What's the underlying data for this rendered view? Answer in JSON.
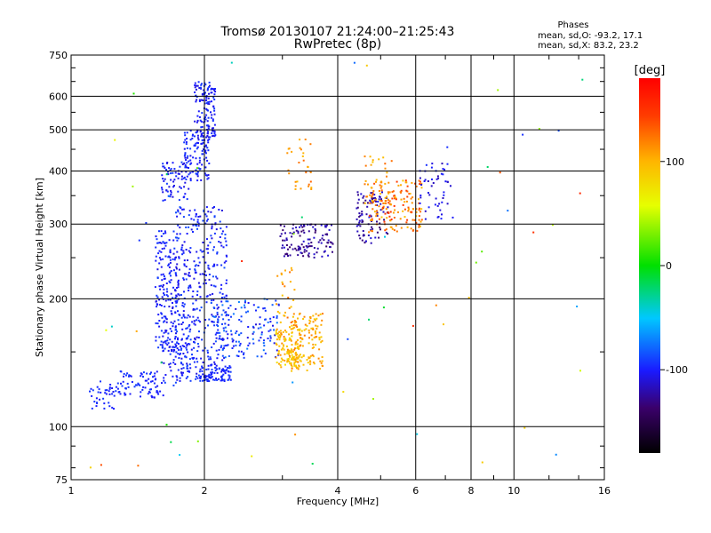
{
  "chart_data": {
    "type": "scatter",
    "title": "Tromsø 20130107 21:24:00–21:25:43",
    "subtitle": "RwPretec (8p)",
    "xlabel": "Frequency [MHz]",
    "ylabel": "Stationary phase Virtual Height [km]",
    "x_scale": "log",
    "y_scale": "log",
    "xlim": [
      1,
      16
    ],
    "ylim": [
      75,
      750
    ],
    "x_ticks": [
      {
        "value": 1,
        "label": "1"
      },
      {
        "value": 2,
        "label": "2"
      },
      {
        "value": 4,
        "label": "4"
      },
      {
        "value": 6,
        "label": "6"
      },
      {
        "value": 8,
        "label": "8"
      },
      {
        "value": 10,
        "label": "10"
      },
      {
        "value": 16,
        "label": "16"
      }
    ],
    "y_ticks": [
      {
        "value": 75,
        "label": "75"
      },
      {
        "value": 100,
        "label": "100"
      },
      {
        "value": 200,
        "label": "200"
      },
      {
        "value": 300,
        "label": "300"
      },
      {
        "value": 400,
        "label": "400"
      },
      {
        "value": 500,
        "label": "500"
      },
      {
        "value": 600,
        "label": "600"
      },
      {
        "value": 750,
        "label": "750"
      }
    ],
    "grid": true,
    "stats": {
      "title": "Phases",
      "line_o": "mean, sd,O: -93.2, 17.1",
      "line_x": "mean, sd,X:  83.2, 23.2"
    },
    "colorbar": {
      "label": "[deg]",
      "range": [
        -180,
        180
      ],
      "ticks": [
        {
          "value": 100,
          "label": "100"
        },
        {
          "value": 0,
          "label": "0"
        },
        {
          "value": -100,
          "label": "-100"
        }
      ]
    },
    "point_clusters": [
      {
        "x": [
          1.1,
          1.28
        ],
        "y": [
          110,
          128
        ],
        "phase": [
          -105,
          -90
        ],
        "count": 40
      },
      {
        "x": [
          1.28,
          1.62
        ],
        "y": [
          117,
          135
        ],
        "phase": [
          -105,
          -90
        ],
        "count": 80
      },
      {
        "x": [
          1.6,
          1.95
        ],
        "y": [
          125,
          185
        ],
        "phase": [
          -110,
          -88
        ],
        "count": 110
      },
      {
        "x": [
          1.55,
          1.75
        ],
        "y": [
          150,
          290
        ],
        "phase": [
          -110,
          -90
        ],
        "count": 180
      },
      {
        "x": [
          1.72,
          2.25
        ],
        "y": [
          130,
          330
        ],
        "phase": [
          -110,
          -85
        ],
        "count": 340
      },
      {
        "x": [
          1.95,
          2.3
        ],
        "y": [
          128,
          140
        ],
        "phase": [
          -105,
          -90
        ],
        "count": 90
      },
      {
        "x": [
          1.6,
          1.85
        ],
        "y": [
          340,
          420
        ],
        "phase": [
          -110,
          -90
        ],
        "count": 70
      },
      {
        "x": [
          1.8,
          2.05
        ],
        "y": [
          380,
          500
        ],
        "phase": [
          -110,
          -90
        ],
        "count": 110
      },
      {
        "x": [
          1.9,
          2.12
        ],
        "y": [
          480,
          650
        ],
        "phase": [
          -110,
          -90
        ],
        "count": 130
      },
      {
        "x": [
          2.1,
          2.95
        ],
        "y": [
          145,
          200
        ],
        "phase": [
          -110,
          -70
        ],
        "count": 150
      },
      {
        "x": [
          2.9,
          3.3
        ],
        "y": [
          138,
          170
        ],
        "phase": [
          75,
          115
        ],
        "count": 120
      },
      {
        "x": [
          3.1,
          3.7
        ],
        "y": [
          135,
          185
        ],
        "phase": [
          85,
          125
        ],
        "count": 140
      },
      {
        "x": [
          2.9,
          3.2
        ],
        "y": [
          160,
          240
        ],
        "phase": [
          90,
          130
        ],
        "count": 30
      },
      {
        "x": [
          2.95,
          3.9
        ],
        "y": [
          250,
          300
        ],
        "phase": [
          -140,
          -110
        ],
        "count": 120
      },
      {
        "x": [
          3.05,
          3.5
        ],
        "y": [
          360,
          480
        ],
        "phase": [
          95,
          130
        ],
        "count": 30
      },
      {
        "x": [
          4.4,
          5.2
        ],
        "y": [
          270,
          360
        ],
        "phase": [
          -140,
          -105
        ],
        "count": 90
      },
      {
        "x": [
          4.7,
          6.2
        ],
        "y": [
          285,
          380
        ],
        "phase": [
          90,
          150
        ],
        "count": 150
      },
      {
        "x": [
          4.6,
          5.3
        ],
        "y": [
          330,
          440
        ],
        "phase": [
          90,
          130
        ],
        "count": 40
      },
      {
        "x": [
          6.1,
          7.3
        ],
        "y": [
          300,
          420
        ],
        "phase": [
          -120,
          -95
        ],
        "count": 50
      },
      {
        "x": [
          1.05,
          15
        ],
        "y": [
          78,
          720
        ],
        "phase": [
          -100,
          160
        ],
        "count": 60
      }
    ]
  }
}
